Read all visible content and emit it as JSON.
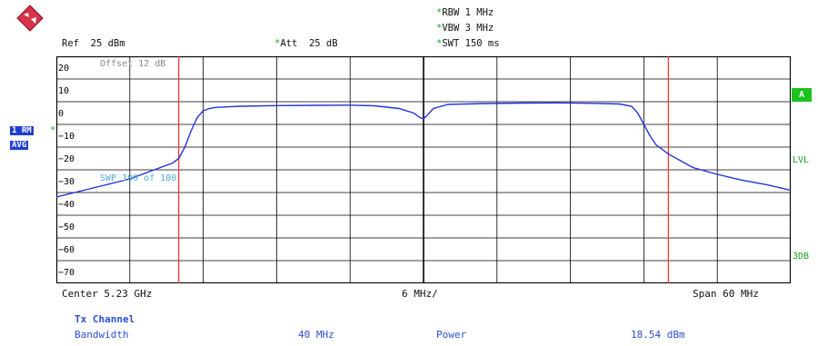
{
  "header": {
    "ref_label": "Ref",
    "ref_value": "25 dBm",
    "att_label": "Att",
    "att_value": "25 dB",
    "offset_label": "Offset",
    "offset_value": "12 dB",
    "rbw_label": "RBW",
    "rbw_value": "1 MHz",
    "vbw_label": "VBW",
    "vbw_value": "3 MHz",
    "swt_label": "SWT",
    "swt_value": "150 ms",
    "star": "*"
  },
  "trace": {
    "mode": "1 RM",
    "detector": "AVG",
    "sweep_text": "SWP   100 of   100"
  },
  "right_markers": {
    "trace_letter": "A",
    "lvl": "LVL",
    "db3": "3DB"
  },
  "footer": {
    "center": "Center  5.23 GHz",
    "per_div": "6 MHz/",
    "span": "Span  60 MHz"
  },
  "measurement": {
    "title": "Tx Channel",
    "bandwidth_label": "Bandwidth",
    "bandwidth_value": "40 MHz",
    "power_label": "Power",
    "power_value": "18.54 dBm"
  },
  "colors": {
    "trace": "#2233dd",
    "channel_lines": "#ff2a2a",
    "grid": "#000000",
    "accent_green": "#1ec21e",
    "accent_blue": "#1f3fd0"
  },
  "chart_data": {
    "type": "line",
    "xlabel": "",
    "ylabel": "",
    "x_unit": "MHz offset from center",
    "xlim": [
      -30,
      30
    ],
    "ylim": [
      -75,
      25
    ],
    "y_ticks": [
      20,
      10,
      0,
      -10,
      -20,
      -30,
      -40,
      -50,
      -60,
      -70
    ],
    "y_tick_labels": [
      "20",
      "10",
      "0",
      "−10",
      "−20",
      "−30",
      "−40",
      "−50",
      "−60",
      "−70"
    ],
    "channel_edges": [
      -20,
      20
    ],
    "series": [
      {
        "x": [
          -30,
          -27,
          -24,
          -22,
          -20.5,
          -20,
          -19.5,
          -19,
          -18.5,
          -18,
          -17.5,
          -17,
          -15,
          -12,
          -9,
          -6,
          -4,
          -2,
          -0.8,
          -0.3,
          0,
          0.3,
          0.8,
          2,
          5,
          8,
          11,
          14,
          16,
          17,
          17.5,
          18,
          18.5,
          19,
          19.5,
          20,
          20.5,
          21,
          22,
          24,
          26,
          28,
          30
        ],
        "y": [
          -37,
          -33,
          -29,
          -25,
          -22,
          -20,
          -15,
          -8,
          -2,
          1,
          2,
          2.5,
          3,
          3.3,
          3.4,
          3.5,
          3.2,
          2,
          0,
          -2,
          -2.5,
          -1,
          2,
          3.8,
          4.2,
          4.4,
          4.5,
          4.3,
          4,
          3,
          0,
          -5,
          -10,
          -14,
          -16,
          -18,
          -19.5,
          -21,
          -24,
          -27,
          -29.5,
          -31.5,
          -34
        ]
      }
    ]
  }
}
